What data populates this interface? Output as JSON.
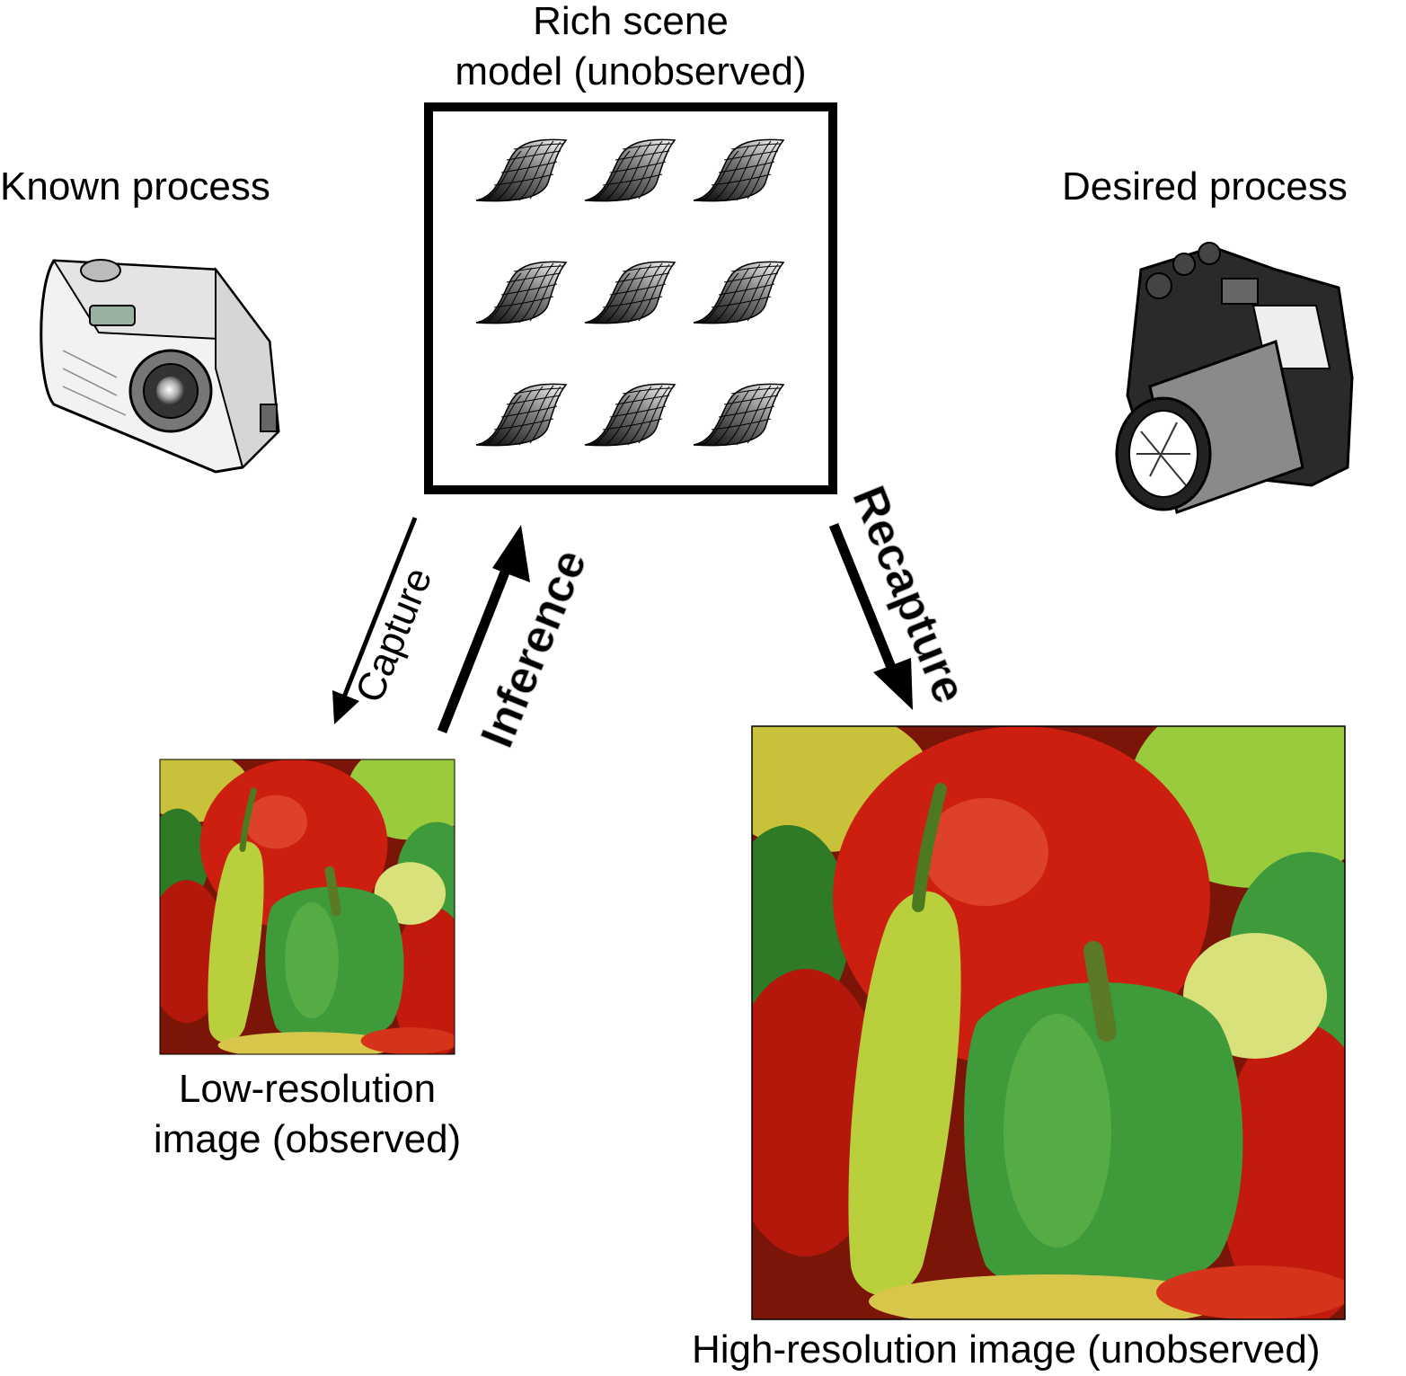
{
  "scene_model": {
    "line1": "Rich scene",
    "line2": "model (unobserved)"
  },
  "known_process": {
    "label": "Known process",
    "icon": "compact-camera-icon"
  },
  "desired_process": {
    "label": "Desired process",
    "icon": "dslr-camera-icon"
  },
  "arrows": {
    "capture": "Capture",
    "inference": "Inference",
    "recapture": "Recapture"
  },
  "low_res": {
    "line1": "Low-resolution",
    "line2": "image (observed)"
  },
  "high_res": {
    "label": "High-resolution image (unobserved)"
  }
}
